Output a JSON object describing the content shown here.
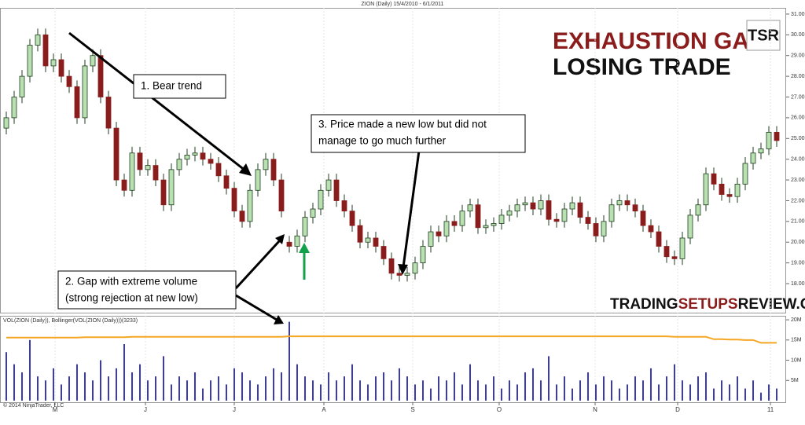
{
  "chart_data": [
    {
      "type": "candlestick",
      "title": "ZION (Daily)  15/4/2010 - 6/1/2011",
      "open": [
        25.5,
        26.0,
        27.0,
        28.0,
        29.5,
        30.0,
        28.5,
        28.8,
        28.0,
        27.5,
        26.0,
        28.5,
        29.0,
        27.0,
        25.5,
        23.0,
        22.5,
        24.3,
        23.5,
        23.7,
        23.0,
        21.8,
        23.5,
        24.0,
        24.2,
        24.3,
        24.0,
        23.8,
        23.2,
        22.6,
        21.5,
        21.0,
        22.5,
        23.5,
        24.0,
        23.0,
        20.0,
        19.8,
        20.3,
        21.2,
        21.6,
        22.5,
        23.0,
        22.0,
        21.5,
        20.8,
        20.0,
        20.2,
        19.8,
        19.2,
        18.5,
        18.4,
        18.5,
        19.0,
        19.8,
        20.5,
        20.3,
        21.0,
        20.8,
        21.5,
        21.8,
        20.7,
        20.8,
        20.9,
        21.3,
        21.5,
        21.8,
        21.9,
        21.6,
        22.0,
        21.1,
        21.0,
        21.6,
        21.9,
        21.2,
        20.9,
        20.3,
        21.0,
        21.8,
        22.0,
        21.8,
        21.5,
        20.8,
        20.5,
        19.8,
        19.3,
        19.2,
        20.2,
        21.3,
        21.8,
        23.3,
        22.8,
        22.3,
        22.2,
        22.8,
        23.8,
        24.3,
        24.5,
        25.3
      ],
      "high": [
        26.3,
        27.3,
        28.3,
        29.8,
        30.3,
        30.3,
        29.1,
        29.1,
        28.3,
        27.8,
        28.8,
        29.3,
        29.3,
        27.3,
        25.8,
        23.3,
        24.6,
        24.6,
        24.0,
        24.0,
        23.3,
        23.8,
        24.3,
        24.5,
        24.6,
        24.6,
        24.3,
        24.1,
        23.5,
        22.9,
        21.8,
        22.8,
        23.8,
        24.3,
        24.3,
        23.3,
        20.3,
        20.6,
        21.5,
        21.9,
        22.8,
        23.3,
        23.3,
        22.3,
        21.8,
        21.1,
        20.5,
        20.5,
        20.1,
        19.5,
        18.8,
        18.8,
        19.3,
        20.1,
        20.8,
        20.8,
        21.3,
        21.3,
        21.8,
        22.1,
        22.1,
        21.1,
        21.2,
        21.6,
        21.8,
        22.1,
        22.2,
        22.2,
        22.3,
        22.3,
        21.4,
        21.9,
        22.2,
        22.2,
        21.5,
        21.2,
        21.3,
        22.1,
        22.3,
        22.3,
        22.1,
        21.8,
        21.1,
        20.8,
        20.1,
        19.6,
        20.5,
        21.6,
        22.1,
        23.6,
        23.6,
        23.1,
        22.6,
        23.1,
        24.1,
        24.6,
        24.8,
        25.6,
        25.6
      ],
      "low": [
        25.2,
        25.7,
        26.7,
        27.7,
        29.2,
        28.2,
        28.2,
        27.7,
        27.2,
        25.7,
        25.7,
        28.2,
        26.7,
        25.2,
        22.7,
        22.2,
        22.2,
        23.2,
        23.2,
        22.7,
        21.5,
        21.5,
        23.2,
        23.7,
        23.9,
        23.7,
        23.5,
        22.9,
        22.3,
        21.2,
        20.7,
        20.7,
        22.2,
        23.2,
        22.7,
        21.2,
        19.5,
        19.5,
        20.0,
        20.9,
        21.3,
        22.2,
        21.7,
        21.2,
        20.5,
        19.7,
        19.7,
        19.5,
        18.9,
        18.2,
        18.1,
        18.1,
        18.2,
        18.7,
        19.5,
        20.0,
        20.0,
        20.5,
        20.5,
        21.2,
        20.4,
        20.4,
        20.5,
        20.6,
        21.0,
        21.2,
        21.5,
        21.3,
        21.3,
        20.8,
        20.7,
        20.7,
        21.3,
        20.9,
        20.6,
        20.0,
        20.0,
        20.7,
        21.5,
        21.5,
        21.2,
        20.5,
        20.2,
        19.5,
        19.0,
        18.9,
        18.9,
        19.9,
        21.0,
        21.5,
        22.5,
        22.0,
        21.9,
        21.9,
        22.5,
        23.5,
        24.0,
        24.2,
        24.6
      ],
      "close": [
        26.0,
        27.0,
        28.0,
        29.5,
        30.0,
        28.5,
        28.8,
        28.0,
        27.5,
        26.0,
        28.5,
        29.0,
        27.0,
        25.5,
        23.0,
        22.5,
        24.3,
        23.5,
        23.7,
        23.0,
        21.8,
        23.5,
        24.0,
        24.2,
        24.3,
        24.0,
        23.8,
        23.2,
        22.6,
        21.5,
        21.0,
        22.5,
        23.5,
        24.0,
        23.0,
        21.5,
        19.8,
        20.3,
        21.2,
        21.6,
        22.5,
        23.0,
        22.0,
        21.5,
        20.8,
        20.0,
        20.2,
        19.8,
        19.2,
        18.5,
        18.4,
        18.5,
        19.0,
        19.8,
        20.5,
        20.3,
        21.0,
        20.8,
        21.5,
        21.8,
        20.7,
        20.8,
        20.9,
        21.3,
        21.5,
        21.8,
        21.9,
        21.6,
        22.0,
        21.1,
        21.0,
        21.6,
        21.9,
        21.2,
        20.9,
        20.3,
        21.0,
        21.8,
        22.0,
        21.8,
        21.5,
        20.8,
        20.5,
        19.8,
        19.3,
        19.2,
        20.2,
        21.3,
        21.8,
        23.3,
        22.8,
        22.3,
        22.2,
        22.8,
        23.8,
        24.3,
        24.5,
        25.3,
        24.9
      ],
      "up_color": "#b8e0b0",
      "down_color": "#8b1c1c",
      "edge_color": "#1f3d1f",
      "xlim": [
        -0.8,
        99.2
      ],
      "xticks": [
        {
          "value": 6.2,
          "label": "M"
        },
        {
          "value": 17.7,
          "label": "J"
        },
        {
          "value": 29,
          "label": "J"
        },
        {
          "value": 40.4,
          "label": "A"
        },
        {
          "value": 51.7,
          "label": "S"
        },
        {
          "value": 62.7,
          "label": "O"
        },
        {
          "value": 74.9,
          "label": "N"
        },
        {
          "value": 85.4,
          "label": "D"
        },
        {
          "value": 97.2,
          "label": "11"
        }
      ],
      "ylim": [
        16.6,
        31.3
      ],
      "yticks": [
        {
          "value": 18,
          "label": "18.00"
        },
        {
          "value": 19,
          "label": "19.00"
        },
        {
          "value": 20,
          "label": "20.00"
        },
        {
          "value": 21,
          "label": "21.00"
        },
        {
          "value": 22,
          "label": "22.00"
        },
        {
          "value": 23,
          "label": "23.00"
        },
        {
          "value": 24,
          "label": "24.00"
        },
        {
          "value": 25,
          "label": "25.00"
        },
        {
          "value": 26,
          "label": "26.00"
        },
        {
          "value": 27,
          "label": "27.00"
        },
        {
          "value": 28,
          "label": "28.00"
        },
        {
          "value": 29,
          "label": "29.00"
        },
        {
          "value": 30,
          "label": "30.00"
        },
        {
          "value": 31,
          "label": "31.00"
        }
      ],
      "grid": false,
      "headline": [
        "EXHAUSTION GAP",
        "LOSING TRADE"
      ],
      "logo": "TSR",
      "website": [
        "TRADING",
        "SETUPS",
        "REVIEW.COM"
      ],
      "annotations": [
        {
          "lines": [
            "1. Bear trend"
          ]
        },
        {
          "lines": [
            "3. Price made a new low but did not",
            "manage to go much further"
          ]
        },
        {
          "lines": [
            "2. Gap with extreme volume",
            "(strong rejection at new low)"
          ]
        }
      ]
    },
    {
      "type": "bar",
      "title": "VOL(ZION (Daily)), Bollinger(VOL(ZION (Daily)))(3233)",
      "footer": "© 2014 NinjaTrader, LLC",
      "series": [
        {
          "name": "VOL",
          "color": "#3a3ab4",
          "values": [
            12,
            9,
            7,
            15,
            6,
            5,
            8,
            4,
            6,
            9,
            7,
            5,
            10,
            6,
            8,
            14,
            7,
            9,
            5,
            6,
            11,
            4,
            6,
            5,
            7,
            3,
            5,
            6,
            4,
            8,
            7,
            5,
            4,
            6,
            8,
            7,
            19.5,
            9,
            6,
            5,
            4,
            7,
            5,
            6,
            9,
            5,
            4,
            6,
            7,
            5,
            8,
            6,
            4,
            5,
            3,
            6,
            5,
            7,
            4,
            9,
            5,
            4,
            6,
            3,
            5,
            4,
            7,
            8,
            5,
            11,
            4,
            6,
            3,
            5,
            7,
            4,
            6,
            5,
            3,
            4,
            6,
            5,
            8,
            4,
            6,
            9,
            5,
            4,
            6,
            7,
            3,
            5,
            4,
            6,
            3,
            5,
            2,
            4,
            3
          ]
        },
        {
          "name": "Bollinger",
          "type": "line",
          "color": "#f5a623",
          "values": [
            15.6,
            15.6,
            15.6,
            15.6,
            15.6,
            15.6,
            15.6,
            15.6,
            15.6,
            15.6,
            15.7,
            15.7,
            15.7,
            15.7,
            15.7,
            15.7,
            15.8,
            15.8,
            15.8,
            15.8,
            15.8,
            15.8,
            15.8,
            15.8,
            15.8,
            15.8,
            15.8,
            15.8,
            15.8,
            15.8,
            15.8,
            15.8,
            15.8,
            15.8,
            15.8,
            15.8,
            15.9,
            15.9,
            15.9,
            15.9,
            15.9,
            15.9,
            15.9,
            15.9,
            15.9,
            15.9,
            15.9,
            15.9,
            15.9,
            15.9,
            15.9,
            15.9,
            15.9,
            15.9,
            15.9,
            15.9,
            15.9,
            15.9,
            15.9,
            15.9,
            15.9,
            15.9,
            15.9,
            15.9,
            15.9,
            15.9,
            15.9,
            15.9,
            15.9,
            15.9,
            15.9,
            15.9,
            15.9,
            15.9,
            15.9,
            15.9,
            15.9,
            15.9,
            15.9,
            15.9,
            15.9,
            15.9,
            15.9,
            15.9,
            15.9,
            15.8,
            15.8,
            15.8,
            15.8,
            15.8,
            15.2,
            15.2,
            15.1,
            15.1,
            15.0,
            15.0,
            14.3,
            14.3,
            14.3
          ]
        }
      ],
      "ylim": [
        0,
        20.6
      ],
      "yticks": [
        {
          "value": 5,
          "label": "5M"
        },
        {
          "value": 10,
          "label": "10M"
        },
        {
          "value": 15,
          "label": "15M"
        },
        {
          "value": 20,
          "label": "20M"
        }
      ]
    }
  ]
}
